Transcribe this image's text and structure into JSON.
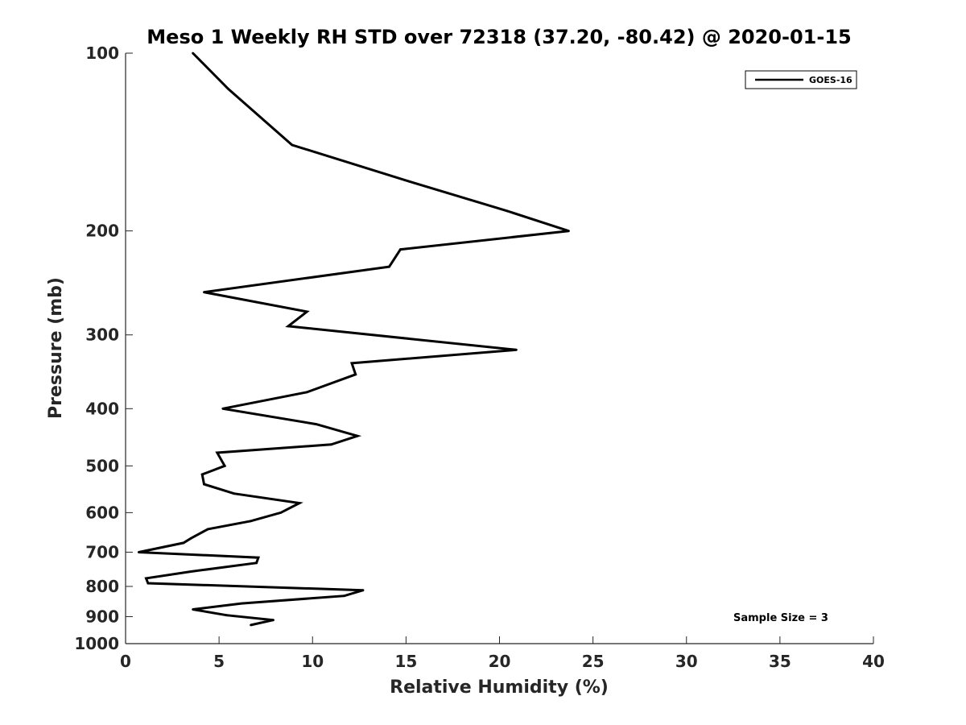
{
  "chart_data": {
    "type": "line",
    "title": "Meso 1 Weekly RH STD over 72318 (37.20, -80.42) @ 2020-01-15",
    "xlabel": "Relative Humidity (%)",
    "ylabel": "Pressure (mb)",
    "xlim": [
      0,
      40
    ],
    "ylim": [
      100,
      1000
    ],
    "y_scale": "log",
    "y_reversed": true,
    "grid": false,
    "legend_position": "top-right",
    "x_ticks": [
      0,
      5,
      10,
      15,
      20,
      25,
      30,
      35,
      40
    ],
    "y_ticks": [
      100,
      200,
      300,
      400,
      500,
      600,
      700,
      800,
      900,
      1000
    ],
    "series": [
      {
        "name": "GOES-16",
        "color": "#000000",
        "points": [
          [
            3.6,
            100
          ],
          [
            5.5,
            115
          ],
          [
            8.9,
            143
          ],
          [
            15.2,
            165
          ],
          [
            20.4,
            185
          ],
          [
            23.7,
            200
          ],
          [
            14.7,
            215
          ],
          [
            14.1,
            230
          ],
          [
            4.2,
            254
          ],
          [
            9.7,
            274
          ],
          [
            8.7,
            290
          ],
          [
            20.9,
            318
          ],
          [
            12.1,
            335
          ],
          [
            12.3,
            350
          ],
          [
            9.7,
            375
          ],
          [
            5.2,
            400
          ],
          [
            10.2,
            425
          ],
          [
            12.4,
            445
          ],
          [
            11.0,
            460
          ],
          [
            4.9,
            475
          ],
          [
            5.3,
            500
          ],
          [
            4.1,
            517
          ],
          [
            4.2,
            537
          ],
          [
            5.8,
            557
          ],
          [
            9.3,
            578
          ],
          [
            8.3,
            600
          ],
          [
            6.7,
            620
          ],
          [
            4.4,
            640
          ],
          [
            3.5,
            663
          ],
          [
            3.1,
            675
          ],
          [
            0.7,
            700
          ],
          [
            7.1,
            715
          ],
          [
            7.0,
            730
          ],
          [
            3.5,
            755
          ],
          [
            1.1,
            775
          ],
          [
            1.2,
            790
          ],
          [
            12.7,
            812
          ],
          [
            11.7,
            830
          ],
          [
            6.2,
            855
          ],
          [
            3.6,
            875
          ],
          [
            5.4,
            895
          ],
          [
            7.9,
            912
          ],
          [
            6.7,
            930
          ]
        ]
      }
    ],
    "annotations": [
      "Sample Size = 3"
    ]
  }
}
